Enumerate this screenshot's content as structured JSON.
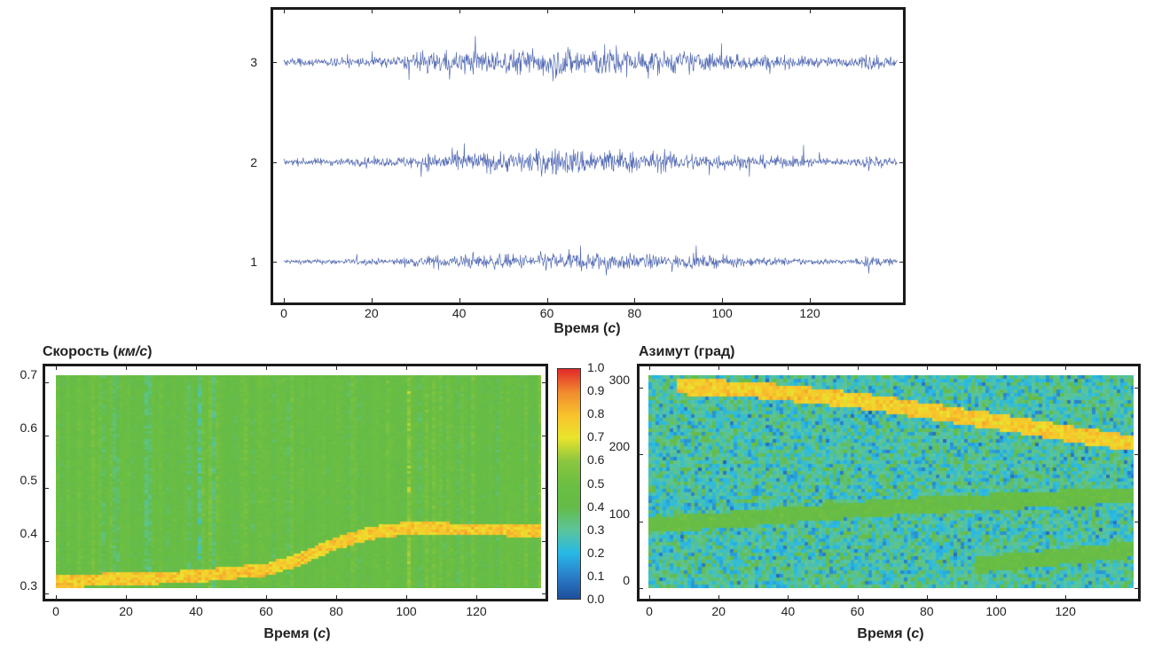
{
  "chart_data": [
    {
      "type": "line",
      "id": "seismograms",
      "xlabel_main": "Время (",
      "xlabel_unit": "с",
      "xlabel_end": ")",
      "xlim": [
        0,
        140
      ],
      "xticks": [
        0,
        20,
        40,
        60,
        80,
        100,
        120
      ],
      "yticks": [
        1,
        2,
        3
      ],
      "series": [
        {
          "name": "1",
          "offset": 1,
          "amplitude": 0.12,
          "color": "#3a55a8"
        },
        {
          "name": "2",
          "offset": 2,
          "amplitude": 0.17,
          "color": "#3a55a8"
        },
        {
          "name": "3",
          "offset": 3,
          "amplitude": 0.2,
          "color": "#3a55a8"
        }
      ],
      "envelope": {
        "t": [
          0,
          25,
          35,
          55,
          60,
          75,
          80,
          100,
          120,
          130,
          133,
          140
        ],
        "a": [
          0.25,
          0.35,
          0.7,
          0.8,
          1.0,
          1.0,
          0.8,
          0.6,
          0.35,
          0.25,
          0.6,
          0.3
        ]
      }
    },
    {
      "type": "heatmap",
      "id": "velocity",
      "title_main": "Скорость (",
      "title_unit": "км/с",
      "title_end": ")",
      "xlabel_main": "Время (",
      "xlabel_unit": "с",
      "xlabel_end": ")",
      "xlim": [
        0,
        139
      ],
      "ylim": [
        0.31,
        0.715
      ],
      "xticks": [
        0,
        20,
        40,
        60,
        80,
        100,
        120
      ],
      "yticks": [
        "0.3",
        "0.4",
        "0.5",
        "0.6",
        "0.7"
      ],
      "background_level": 0.45,
      "ridge": {
        "t": [
          0,
          10,
          40,
          60,
          70,
          80,
          90,
          100,
          138
        ],
        "v": [
          0.322,
          0.325,
          0.332,
          0.345,
          0.365,
          0.395,
          0.415,
          0.423,
          0.42
        ],
        "peak": 0.85
      }
    },
    {
      "type": "heatmap",
      "id": "azimuth",
      "title": "Азимут (град)",
      "xlabel_main": "Время (",
      "xlabel_unit": "с",
      "xlabel_end": ")",
      "xlim": [
        0,
        139
      ],
      "ylim": [
        0,
        320
      ],
      "xticks": [
        0,
        20,
        40,
        60,
        80,
        100,
        120
      ],
      "yticks": [
        "0",
        "100",
        "200",
        "300"
      ],
      "background_level": 0.28,
      "ridges": [
        {
          "t": [
            10,
            30,
            60,
            90,
            120,
            138
          ],
          "v": [
            303,
            298,
            282,
            258,
            232,
            218
          ],
          "peak": 0.78
        },
        {
          "t": [
            0,
            30,
            60,
            80,
            100,
            138
          ],
          "v": [
            95,
            105,
            118,
            125,
            130,
            140
          ],
          "peak": 0.45
        },
        {
          "t": [
            95,
            115,
            138
          ],
          "v": [
            35,
            45,
            58
          ],
          "peak": 0.45
        }
      ]
    }
  ],
  "colorbar": {
    "ticks": [
      "0.0",
      "0.1",
      "0.2",
      "0.3",
      "0.4",
      "0.5",
      "0.6",
      "0.7",
      "0.8",
      "0.9",
      "1.0"
    ],
    "colors": [
      "#1e4e9c",
      "#2a7fc9",
      "#27b9e6",
      "#5cc59a",
      "#64bb47",
      "#6cbf43",
      "#8cc63f",
      "#e9e42c",
      "#f8c22c",
      "#f08a2e",
      "#e3282a"
    ]
  }
}
